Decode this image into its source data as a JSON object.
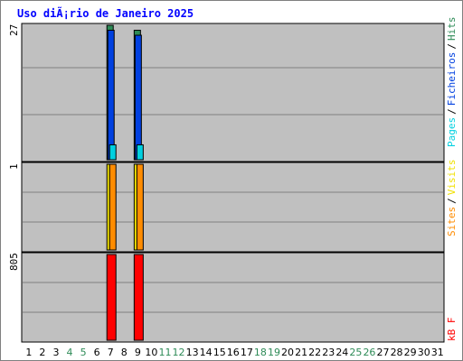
{
  "title": "Uso diÃ¡rio de Janeiro 2025",
  "colors": {
    "background": "#ffffff",
    "plot_bg": "#c0c0c0",
    "frame": "#000000",
    "title": "#0000ff",
    "hits": "#2e8b57",
    "files": "#0040e0",
    "pages": "#00d0e0",
    "visits": "#f0e000",
    "sites": "#ff8c00",
    "kbf": "#ff0000",
    "weekday": "#000000",
    "weekend": "#2e8b57"
  },
  "chart_data": [
    {
      "type": "bar",
      "panel": "hits-files-pages",
      "ymax_label": "27",
      "ymax": 27,
      "legend": [
        "Pages",
        "/",
        "Ficheiros",
        "/",
        "Hits"
      ],
      "days": [
        1,
        2,
        3,
        4,
        5,
        6,
        7,
        8,
        9,
        10,
        11,
        12,
        13,
        14,
        15,
        16,
        17,
        18,
        19,
        20,
        21,
        22,
        23,
        24,
        25,
        26,
        27,
        28,
        29,
        30,
        31
      ],
      "weekend_days": [
        4,
        5,
        11,
        12,
        18,
        19,
        25,
        26
      ],
      "series": [
        {
          "name": "Hits",
          "values": {
            "7": 27,
            "9": 26
          }
        },
        {
          "name": "Ficheiros",
          "values": {
            "7": 26,
            "9": 25
          }
        },
        {
          "name": "Pages",
          "values": {
            "7": 3,
            "9": 3
          }
        }
      ]
    },
    {
      "type": "bar",
      "panel": "visits-sites",
      "ymax_label": "1",
      "ymax": 1,
      "legend": [
        "Sites",
        "/",
        "Visits"
      ],
      "series": [
        {
          "name": "Visits",
          "values": {
            "7": 1,
            "9": 1
          }
        },
        {
          "name": "Sites",
          "values": {
            "7": 1,
            "9": 1
          }
        }
      ]
    },
    {
      "type": "bar",
      "panel": "kbytes",
      "ymax_label": "805",
      "ymax": 805,
      "legend": [
        "kB F"
      ],
      "series": [
        {
          "name": "kB F",
          "values": {
            "7": 805,
            "9": 805
          }
        }
      ]
    }
  ]
}
